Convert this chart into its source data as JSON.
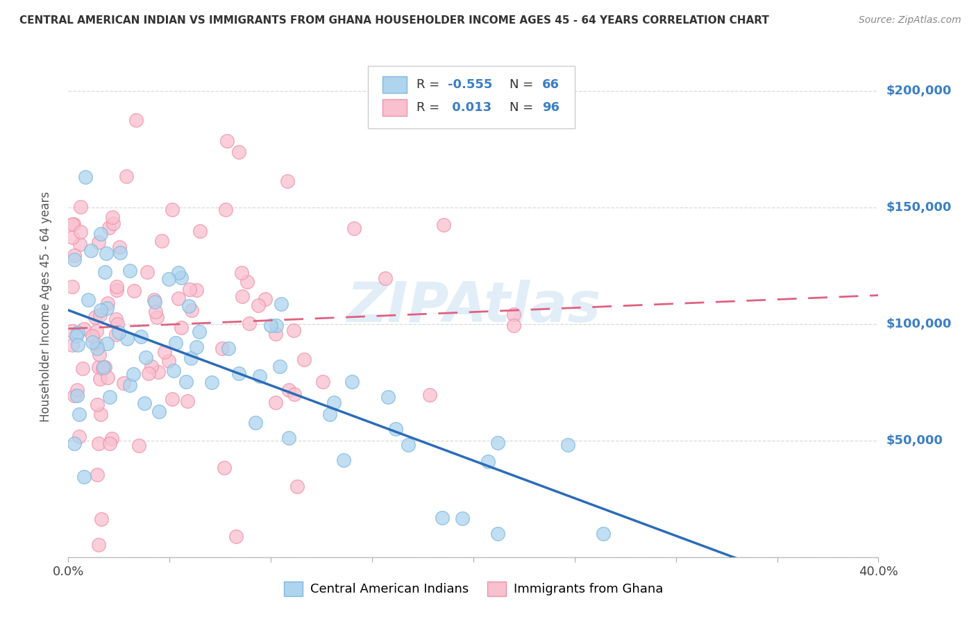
{
  "title": "CENTRAL AMERICAN INDIAN VS IMMIGRANTS FROM GHANA HOUSEHOLDER INCOME AGES 45 - 64 YEARS CORRELATION CHART",
  "source": "Source: ZipAtlas.com",
  "ylabel": "Householder Income Ages 45 - 64 years",
  "xlim": [
    0.0,
    0.4
  ],
  "ylim": [
    0,
    215000
  ],
  "yticks": [
    0,
    50000,
    100000,
    150000,
    200000
  ],
  "ytick_labels": [
    "",
    "$50,000",
    "$100,000",
    "$150,000",
    "$200,000"
  ],
  "blue_R": -0.555,
  "blue_N": 66,
  "pink_R": 0.013,
  "pink_N": 96,
  "blue_fill_color": "#AED4EE",
  "blue_edge_color": "#7EB8DE",
  "pink_fill_color": "#F9C0CF",
  "pink_edge_color": "#F090A8",
  "blue_line_color": "#2B6CB8",
  "pink_line_color": "#E06080",
  "watermark": "ZIPAtlas",
  "watermark_color": "#C5DCF0",
  "legend_label_blue": "Central American Indians",
  "legend_label_pink": "Immigrants from Ghana",
  "background_color": "#ffffff",
  "grid_color": "#d0d0d0",
  "title_color": "#333333",
  "axis_label_color": "#555555",
  "ytick_color": "#3B7FC4",
  "value_text_color": "#3B7FC4",
  "n_text_color": "#3B7FC4"
}
